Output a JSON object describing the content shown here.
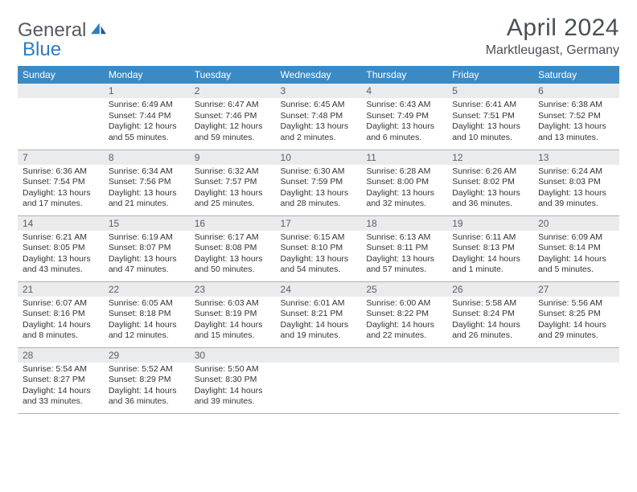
{
  "brand": {
    "part1": "General",
    "part2": "Blue"
  },
  "title": "April 2024",
  "location": "Marktleugast, Germany",
  "weekdays": [
    "Sunday",
    "Monday",
    "Tuesday",
    "Wednesday",
    "Thursday",
    "Friday",
    "Saturday"
  ],
  "colors": {
    "header_bg": "#3b8ac4",
    "header_text": "#ffffff",
    "daynum_bg": "#e9ebed",
    "daynum_text": "#5a5f64",
    "cell_text": "#333333",
    "rule": "#b0b0b0",
    "title_text": "#4a4f55",
    "logo_gray": "#555a5f",
    "logo_blue": "#2e7cbf",
    "page_bg": "#ffffff"
  },
  "typography": {
    "month_title_pt": 30,
    "location_pt": 16,
    "weekday_pt": 12,
    "daynum_pt": 12,
    "cell_pt": 10.5,
    "logo_pt": 24
  },
  "layout": {
    "start_blank_cells": 1,
    "rows": 5,
    "cols": 7
  },
  "days": [
    {
      "n": 1,
      "sunrise": "6:49 AM",
      "sunset": "7:44 PM",
      "daylight": "12 hours and 55 minutes."
    },
    {
      "n": 2,
      "sunrise": "6:47 AM",
      "sunset": "7:46 PM",
      "daylight": "12 hours and 59 minutes."
    },
    {
      "n": 3,
      "sunrise": "6:45 AM",
      "sunset": "7:48 PM",
      "daylight": "13 hours and 2 minutes."
    },
    {
      "n": 4,
      "sunrise": "6:43 AM",
      "sunset": "7:49 PM",
      "daylight": "13 hours and 6 minutes."
    },
    {
      "n": 5,
      "sunrise": "6:41 AM",
      "sunset": "7:51 PM",
      "daylight": "13 hours and 10 minutes."
    },
    {
      "n": 6,
      "sunrise": "6:38 AM",
      "sunset": "7:52 PM",
      "daylight": "13 hours and 13 minutes."
    },
    {
      "n": 7,
      "sunrise": "6:36 AM",
      "sunset": "7:54 PM",
      "daylight": "13 hours and 17 minutes."
    },
    {
      "n": 8,
      "sunrise": "6:34 AM",
      "sunset": "7:56 PM",
      "daylight": "13 hours and 21 minutes."
    },
    {
      "n": 9,
      "sunrise": "6:32 AM",
      "sunset": "7:57 PM",
      "daylight": "13 hours and 25 minutes."
    },
    {
      "n": 10,
      "sunrise": "6:30 AM",
      "sunset": "7:59 PM",
      "daylight": "13 hours and 28 minutes."
    },
    {
      "n": 11,
      "sunrise": "6:28 AM",
      "sunset": "8:00 PM",
      "daylight": "13 hours and 32 minutes."
    },
    {
      "n": 12,
      "sunrise": "6:26 AM",
      "sunset": "8:02 PM",
      "daylight": "13 hours and 36 minutes."
    },
    {
      "n": 13,
      "sunrise": "6:24 AM",
      "sunset": "8:03 PM",
      "daylight": "13 hours and 39 minutes."
    },
    {
      "n": 14,
      "sunrise": "6:21 AM",
      "sunset": "8:05 PM",
      "daylight": "13 hours and 43 minutes."
    },
    {
      "n": 15,
      "sunrise": "6:19 AM",
      "sunset": "8:07 PM",
      "daylight": "13 hours and 47 minutes."
    },
    {
      "n": 16,
      "sunrise": "6:17 AM",
      "sunset": "8:08 PM",
      "daylight": "13 hours and 50 minutes."
    },
    {
      "n": 17,
      "sunrise": "6:15 AM",
      "sunset": "8:10 PM",
      "daylight": "13 hours and 54 minutes."
    },
    {
      "n": 18,
      "sunrise": "6:13 AM",
      "sunset": "8:11 PM",
      "daylight": "13 hours and 57 minutes."
    },
    {
      "n": 19,
      "sunrise": "6:11 AM",
      "sunset": "8:13 PM",
      "daylight": "14 hours and 1 minute."
    },
    {
      "n": 20,
      "sunrise": "6:09 AM",
      "sunset": "8:14 PM",
      "daylight": "14 hours and 5 minutes."
    },
    {
      "n": 21,
      "sunrise": "6:07 AM",
      "sunset": "8:16 PM",
      "daylight": "14 hours and 8 minutes."
    },
    {
      "n": 22,
      "sunrise": "6:05 AM",
      "sunset": "8:18 PM",
      "daylight": "14 hours and 12 minutes."
    },
    {
      "n": 23,
      "sunrise": "6:03 AM",
      "sunset": "8:19 PM",
      "daylight": "14 hours and 15 minutes."
    },
    {
      "n": 24,
      "sunrise": "6:01 AM",
      "sunset": "8:21 PM",
      "daylight": "14 hours and 19 minutes."
    },
    {
      "n": 25,
      "sunrise": "6:00 AM",
      "sunset": "8:22 PM",
      "daylight": "14 hours and 22 minutes."
    },
    {
      "n": 26,
      "sunrise": "5:58 AM",
      "sunset": "8:24 PM",
      "daylight": "14 hours and 26 minutes."
    },
    {
      "n": 27,
      "sunrise": "5:56 AM",
      "sunset": "8:25 PM",
      "daylight": "14 hours and 29 minutes."
    },
    {
      "n": 28,
      "sunrise": "5:54 AM",
      "sunset": "8:27 PM",
      "daylight": "14 hours and 33 minutes."
    },
    {
      "n": 29,
      "sunrise": "5:52 AM",
      "sunset": "8:29 PM",
      "daylight": "14 hours and 36 minutes."
    },
    {
      "n": 30,
      "sunrise": "5:50 AM",
      "sunset": "8:30 PM",
      "daylight": "14 hours and 39 minutes."
    }
  ],
  "labels": {
    "sunrise_prefix": "Sunrise: ",
    "sunset_prefix": "Sunset: ",
    "daylight_prefix": "Daylight: "
  }
}
